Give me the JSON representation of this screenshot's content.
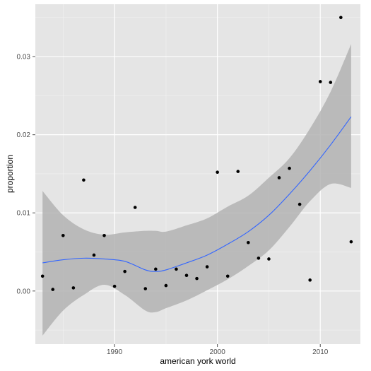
{
  "chart_data": {
    "type": "scatter",
    "xlabel": "american york world",
    "ylabel": "proportion",
    "xlim": [
      1982.3,
      2013.9
    ],
    "ylim": [
      -0.0068,
      0.0367
    ],
    "x_ticks": [
      1990,
      2000,
      2010
    ],
    "x_tick_labels": [
      "1990",
      "2000",
      "2010"
    ],
    "y_ticks": [
      0.0,
      0.01,
      0.02,
      0.03
    ],
    "y_tick_labels": [
      "0.00",
      "0.01",
      "0.02",
      "0.03"
    ],
    "grid": true,
    "colors": {
      "panel": "#e5e5e5",
      "grid_major": "#ffffff",
      "grid_minor": "#f2f2f2",
      "point": "#000000",
      "smooth_line": "#3366ff",
      "ribbon": "#b3b3b3"
    },
    "points": [
      {
        "x": 1983,
        "y": 0.0019
      },
      {
        "x": 1984,
        "y": 0.0002
      },
      {
        "x": 1985,
        "y": 0.0071
      },
      {
        "x": 1986,
        "y": 0.0004
      },
      {
        "x": 1987,
        "y": 0.0142
      },
      {
        "x": 1988,
        "y": 0.0046
      },
      {
        "x": 1989,
        "y": 0.0071
      },
      {
        "x": 1990,
        "y": 0.0006
      },
      {
        "x": 1991,
        "y": 0.0025
      },
      {
        "x": 1992,
        "y": 0.0107
      },
      {
        "x": 1993,
        "y": 0.0003
      },
      {
        "x": 1994,
        "y": 0.0028
      },
      {
        "x": 1995,
        "y": 0.0007
      },
      {
        "x": 1996,
        "y": 0.0028
      },
      {
        "x": 1997,
        "y": 0.002
      },
      {
        "x": 1998,
        "y": 0.0016
      },
      {
        "x": 1999,
        "y": 0.0031
      },
      {
        "x": 2000,
        "y": 0.0152
      },
      {
        "x": 2001,
        "y": 0.0019
      },
      {
        "x": 2002,
        "y": 0.0153
      },
      {
        "x": 2003,
        "y": 0.0062
      },
      {
        "x": 2004,
        "y": 0.0042
      },
      {
        "x": 2005,
        "y": 0.0041
      },
      {
        "x": 2006,
        "y": 0.0145
      },
      {
        "x": 2007,
        "y": 0.0157
      },
      {
        "x": 2008,
        "y": 0.0111
      },
      {
        "x": 2009,
        "y": 0.0014
      },
      {
        "x": 2010,
        "y": 0.0268
      },
      {
        "x": 2011,
        "y": 0.0267
      },
      {
        "x": 2012,
        "y": 0.035
      },
      {
        "x": 2013,
        "y": 0.0063
      }
    ],
    "smooth": {
      "x": [
        1983,
        1985,
        1987,
        1989,
        1991,
        1993,
        1994,
        1995,
        1997,
        1999,
        2001,
        2003,
        2005,
        2007,
        2009,
        2011,
        2013
      ],
      "y": [
        0.0036,
        0.004,
        0.0042,
        0.0041,
        0.0038,
        0.0027,
        0.0025,
        0.0027,
        0.0036,
        0.0046,
        0.006,
        0.0076,
        0.0097,
        0.0124,
        0.0154,
        0.0187,
        0.0223
      ],
      "lower": [
        -0.0057,
        -0.0025,
        -0.0005,
        0.0008,
        -0.0005,
        -0.0025,
        -0.0027,
        -0.0022,
        -0.0012,
        0.0001,
        0.0015,
        0.0032,
        0.0052,
        0.0082,
        0.0115,
        0.0137,
        0.0132
      ],
      "upper": [
        0.0128,
        0.0097,
        0.0079,
        0.0072,
        0.0075,
        0.0077,
        0.0077,
        0.0076,
        0.0084,
        0.0093,
        0.0108,
        0.0122,
        0.0145,
        0.017,
        0.0208,
        0.0255,
        0.0316
      ]
    }
  }
}
